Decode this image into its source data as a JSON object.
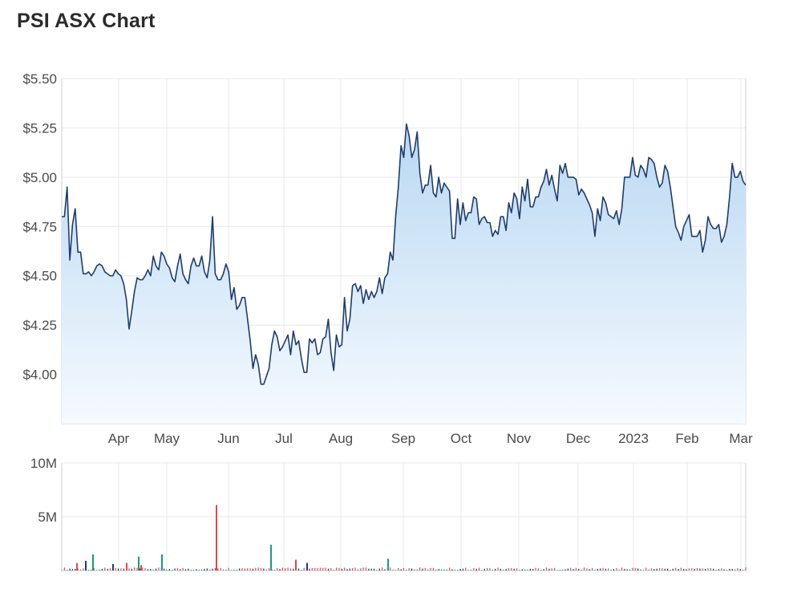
{
  "title": "PSI ASX Chart",
  "colors": {
    "price_line": "#1f3c6e",
    "area_top": "#b9d8f2",
    "area_bottom": "#f5faff",
    "volume_up": "#1a9a7f",
    "volume_down": "#e0484f",
    "volume_neutral": "#1f3c6e"
  },
  "chart_data": [
    {
      "type": "area",
      "ylim": [
        3.75,
        5.5
      ],
      "y_ticks": [
        "$4.00",
        "$4.25",
        "$4.50",
        "$4.75",
        "$5.00",
        "$5.25",
        "$5.50"
      ],
      "y_tick_values": [
        4.0,
        4.25,
        4.5,
        4.75,
        5.0,
        5.25,
        5.5
      ],
      "x_ticks": [
        "Apr",
        "May",
        "Jun",
        "Jul",
        "Aug",
        "Sep",
        "Oct",
        "Nov",
        "Dec",
        "2023",
        "Feb",
        "Mar"
      ],
      "grid": true,
      "series": [
        {
          "values": [
            4.8,
            4.8,
            4.95,
            4.58,
            4.76,
            4.84,
            4.62,
            4.62,
            4.51,
            4.51,
            4.52,
            4.5,
            4.52,
            4.55,
            4.56,
            4.55,
            4.52,
            4.51,
            4.5,
            4.5,
            4.53,
            4.51,
            4.5,
            4.46,
            4.38,
            4.23,
            4.32,
            4.42,
            4.49,
            4.48,
            4.48,
            4.5,
            4.53,
            4.5,
            4.6,
            4.55,
            4.53,
            4.62,
            4.6,
            4.56,
            4.54,
            4.49,
            4.47,
            4.55,
            4.61,
            4.51,
            4.48,
            4.46,
            4.55,
            4.59,
            4.55,
            4.55,
            4.6,
            4.52,
            4.49,
            4.58,
            4.8,
            4.51,
            4.48,
            4.48,
            4.51,
            4.56,
            4.52,
            4.38,
            4.44,
            4.33,
            4.35,
            4.39,
            4.39,
            4.28,
            4.17,
            4.03,
            4.1,
            4.05,
            3.95,
            3.95,
            3.99,
            4.03,
            4.15,
            4.22,
            4.19,
            4.12,
            4.14,
            4.17,
            4.2,
            4.1,
            4.22,
            4.15,
            4.17,
            4.08,
            4.01,
            4.01,
            4.18,
            4.16,
            4.18,
            4.1,
            4.11,
            4.18,
            4.19,
            4.28,
            4.11,
            4.02,
            4.2,
            4.14,
            4.15,
            4.39,
            4.22,
            4.28,
            4.45,
            4.46,
            4.42,
            4.45,
            4.36,
            4.43,
            4.38,
            4.42,
            4.39,
            4.42,
            4.49,
            4.41,
            4.49,
            4.51,
            4.62,
            4.58,
            4.8,
            4.95,
            5.16,
            5.1,
            5.27,
            5.21,
            5.1,
            5.14,
            5.23,
            5.02,
            4.92,
            4.96,
            4.96,
            5.06,
            4.92,
            4.9,
            5.0,
            4.92,
            4.97,
            4.95,
            4.93,
            4.69,
            4.69,
            4.89,
            4.76,
            4.87,
            4.78,
            4.82,
            4.82,
            4.9,
            4.89,
            4.76,
            4.79,
            4.8,
            4.77,
            4.77,
            4.7,
            4.73,
            4.71,
            4.8,
            4.8,
            4.73,
            4.87,
            4.82,
            4.92,
            4.89,
            4.79,
            4.95,
            4.88,
            4.99,
            4.85,
            4.85,
            4.9,
            4.9,
            4.95,
            4.98,
            5.04,
            4.96,
            5.01,
            4.94,
            4.88,
            5.06,
            5.02,
            5.07,
            5.0,
            5.0,
            5.0,
            4.99,
            4.91,
            4.94,
            4.92,
            4.89,
            4.86,
            4.82,
            4.7,
            4.84,
            4.78,
            4.9,
            4.87,
            4.81,
            4.8,
            4.79,
            4.83,
            4.76,
            4.84,
            5.0,
            5.0,
            5.0,
            5.1,
            5.01,
            5.0,
            5.06,
            5.04,
            5.0,
            5.1,
            5.09,
            5.07,
            5.0,
            4.95,
            4.97,
            5.06,
            5.03,
            4.95,
            4.85,
            4.75,
            4.72,
            4.68,
            4.75,
            4.78,
            4.81,
            4.7,
            4.7,
            4.7,
            4.73,
            4.62,
            4.68,
            4.8,
            4.76,
            4.74,
            4.74,
            4.76,
            4.67,
            4.7,
            4.76,
            4.9,
            5.07,
            5.0,
            5.0,
            5.03,
            4.98,
            4.96
          ]
        }
      ]
    },
    {
      "type": "bar",
      "ylim": [
        0,
        10000000
      ],
      "y_ticks": [
        "5M",
        "10M"
      ],
      "y_tick_values": [
        5000000,
        10000000
      ],
      "grid": true,
      "volume_spikes": [
        {
          "value": 6100000,
          "direction": "down"
        },
        {
          "value": 2400000,
          "direction": "up"
        },
        {
          "value": 1500000,
          "direction": "up"
        },
        {
          "value": 1500000,
          "direction": "up"
        },
        {
          "value": 1300000,
          "direction": "up"
        },
        {
          "value": 1100000,
          "direction": "up"
        },
        {
          "value": 1000000,
          "direction": "down"
        },
        {
          "value": 900000,
          "direction": "neutral"
        },
        {
          "value": 700000,
          "direction": "down"
        },
        {
          "value": 700000,
          "direction": "down"
        },
        {
          "value": 700000,
          "direction": "neutral"
        },
        {
          "value": 600000,
          "direction": "neutral"
        },
        {
          "value": 500000,
          "direction": "down"
        }
      ]
    }
  ]
}
